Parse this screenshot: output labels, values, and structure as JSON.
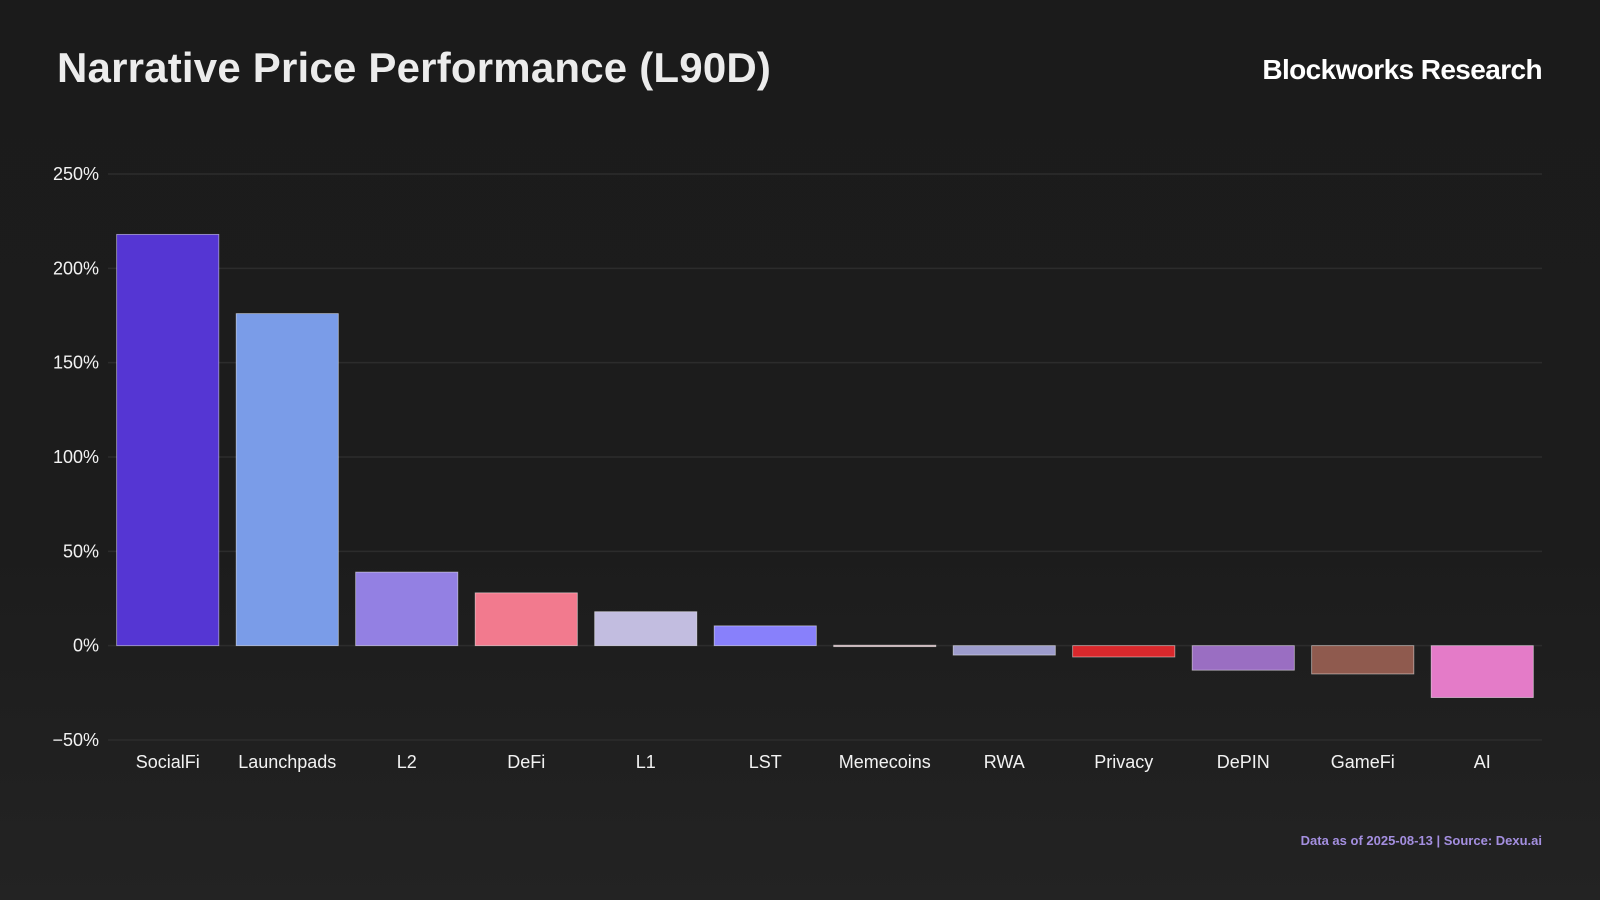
{
  "header": {
    "title": "Narrative Price Performance (L90D)",
    "brand": "Blockworks Research"
  },
  "footer": {
    "note": "Data as of 2025-08-13 | Source: Dexu.ai"
  },
  "chart_data": {
    "type": "bar",
    "title": "Narrative Price Performance (L90D)",
    "xlabel": "",
    "ylabel": "",
    "ylim": [
      -50,
      250
    ],
    "yticks": [
      -50,
      0,
      50,
      100,
      150,
      200,
      250
    ],
    "yticklabels": [
      "−50%",
      "0%",
      "50%",
      "100%",
      "150%",
      "200%",
      "250%"
    ],
    "grid": true,
    "legend": "none",
    "categories": [
      "SocialFi",
      "Launchpads",
      "L2",
      "DeFi",
      "L1",
      "LST",
      "Memecoins",
      "RWA",
      "Privacy",
      "DePIN",
      "GameFi",
      "AI"
    ],
    "values": [
      218,
      176,
      39,
      28,
      18,
      10.5,
      -0.5,
      -5,
      -6,
      -13,
      -15,
      -27.5
    ],
    "colors": [
      "#5536d3",
      "#7a9ce8",
      "#9380e3",
      "#f27a8e",
      "#c2bde0",
      "#8880fb",
      "#c9a8b0",
      "#9d9ccc",
      "#d9282c",
      "#9a6ec2",
      "#8f5a4e",
      "#e47bc8"
    ]
  }
}
